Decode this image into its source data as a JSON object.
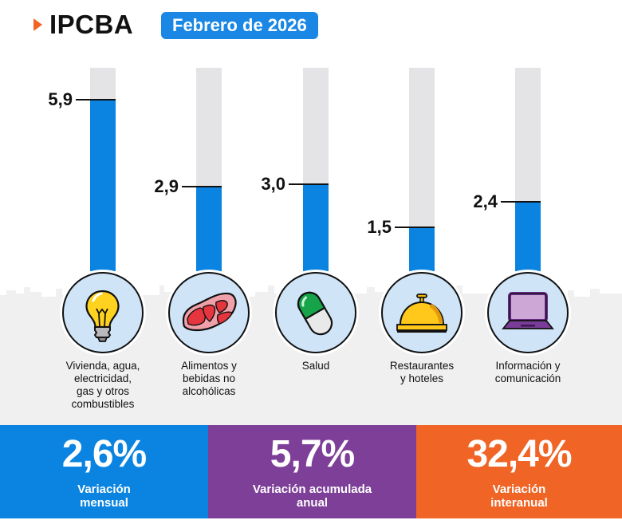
{
  "header": {
    "brand": "IPCBA",
    "date_badge": "Febrero de 2026",
    "colors": {
      "accent_arrow": "#f06425",
      "badge": "#1a87e4"
    }
  },
  "chart_data": {
    "type": "bar",
    "title": "IPCBA Febrero de 2026",
    "xlabel": "",
    "ylabel": "",
    "ylim": [
      0,
      7
    ],
    "grid": false,
    "categories": [
      "Vivienda, agua, electricidad, gas y otros combustibles",
      "Alimentos y bebidas no alcohólicas",
      "Salud",
      "Restaurantes y hoteles",
      "Información y comunicación"
    ],
    "values": [
      5.9,
      2.9,
      3.0,
      1.5,
      2.4
    ],
    "value_labels": [
      "5,9",
      "2,9",
      "3,0",
      "1,5",
      "2,4"
    ],
    "bar_color": "#0a84e0",
    "track_color": "#e4e4e6"
  },
  "categories": [
    {
      "label_lines": [
        "Vivienda, agua,",
        "electricidad,",
        "gas y otros",
        "combustibles"
      ],
      "icon": "lightbulb-icon"
    },
    {
      "label_lines": [
        "Alimentos y",
        "bebidas no",
        "alcohólicas"
      ],
      "icon": "meat-steak-icon"
    },
    {
      "label_lines": [
        "Salud"
      ],
      "icon": "pill-capsule-icon"
    },
    {
      "label_lines": [
        "Restaurantes",
        "y hoteles"
      ],
      "icon": "service-bell-icon"
    },
    {
      "label_lines": [
        "Información y",
        "comunicación"
      ],
      "icon": "laptop-icon"
    }
  ],
  "stats": [
    {
      "value": "2,6%",
      "label_lines": [
        "Variación",
        "mensual"
      ],
      "color": "#0a84e0"
    },
    {
      "value": "5,7%",
      "label_lines": [
        "Variación acumulada",
        "anual"
      ],
      "color": "#7d3f98"
    },
    {
      "value": "32,4%",
      "label_lines": [
        "Variación",
        "interanual"
      ],
      "color": "#f06425"
    }
  ]
}
